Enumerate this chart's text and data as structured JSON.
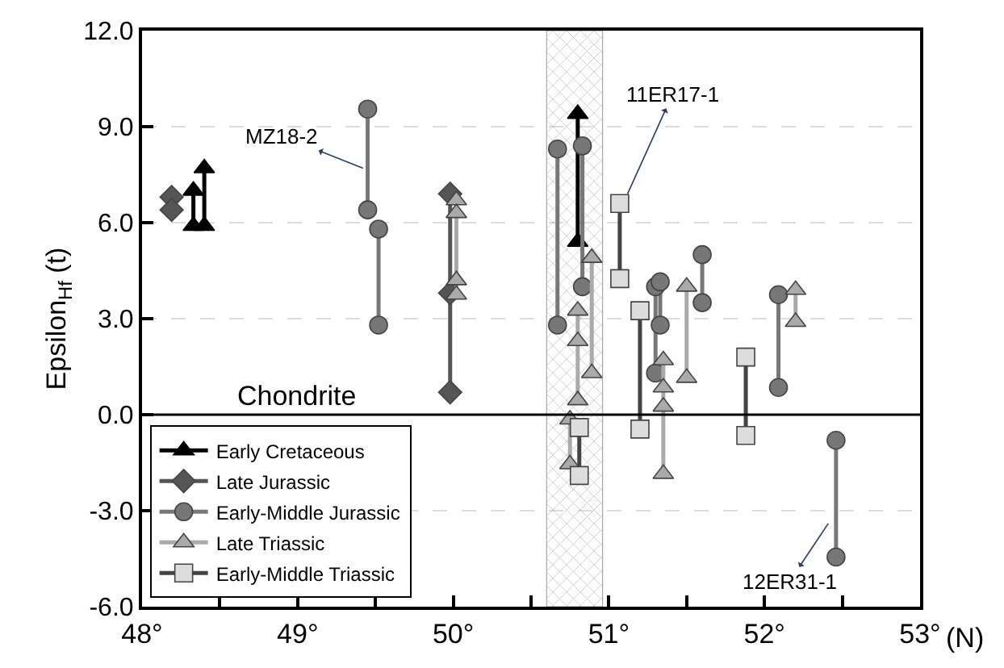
{
  "chart_data": {
    "type": "line",
    "xlabel": "(N)",
    "ylabel": "Epsilon$_{Hf}$ (t)",
    "xlim": [
      48,
      53
    ],
    "xticks": [
      {
        "value": 48,
        "label": "48°"
      },
      {
        "value": 48.5,
        "label": null
      },
      {
        "value": 49,
        "label": "49°"
      },
      {
        "value": 49.5,
        "label": null
      },
      {
        "value": 50,
        "label": "50°"
      },
      {
        "value": 50.5,
        "label": null
      },
      {
        "value": 51,
        "label": "51°"
      },
      {
        "value": 51.5,
        "label": null
      },
      {
        "value": 52,
        "label": "52°"
      },
      {
        "value": 52.5,
        "label": null
      },
      {
        "value": 53,
        "label": "53°"
      }
    ],
    "ylim": [
      -6,
      12
    ],
    "yticks": [
      {
        "value": -6,
        "label": "-6.0"
      },
      {
        "value": -3,
        "label": "-3.0"
      },
      {
        "value": 0,
        "label": "0.0"
      },
      {
        "value": 3,
        "label": "3.0"
      },
      {
        "value": 6,
        "label": "6.0"
      },
      {
        "value": 9,
        "label": "9.0"
      },
      {
        "value": 12,
        "label": "12.0"
      }
    ],
    "grid": "y",
    "legend": "bottom left",
    "series": [
      {
        "name": "Early Cretaceous",
        "color": "#000000",
        "marker": "triangle",
        "x": [
          48.33,
          48.33,
          null,
          48.4,
          48.4,
          null,
          50.8,
          50.8
        ],
        "values": [
          7.0,
          5.9,
          null,
          7.7,
          5.9,
          null,
          9.4,
          5.4
        ]
      },
      {
        "name": "Late Jurassic",
        "color": "#555555",
        "marker": "diamond",
        "x": [
          48.19,
          48.19,
          null,
          49.98,
          49.98,
          49.98
        ],
        "values": [
          6.8,
          6.4,
          null,
          6.9,
          3.8,
          0.7
        ]
      },
      {
        "name": "Early-Middle Jurassic",
        "color": "#777777",
        "marker": "circle",
        "x": [
          49.45,
          49.45,
          null,
          49.52,
          49.52,
          null,
          50.67,
          50.67,
          null,
          50.83,
          50.83,
          null,
          51.3,
          51.3,
          null,
          51.33,
          51.33,
          null,
          51.6,
          51.6,
          null,
          52.09,
          52.09,
          null,
          52.46,
          52.46
        ],
        "values": [
          9.55,
          6.4,
          null,
          5.8,
          2.8,
          null,
          8.3,
          2.8,
          null,
          8.4,
          4.0,
          null,
          4.0,
          1.3,
          null,
          4.15,
          2.8,
          null,
          5.0,
          3.5,
          null,
          3.75,
          0.85,
          null,
          -0.8,
          -4.45
        ]
      },
      {
        "name": "Late Triassic",
        "color": "#aaaaaa",
        "marker": "triangle",
        "x": [
          50.02,
          50.02,
          50.02,
          50.02,
          null,
          50.89,
          50.89,
          null,
          50.8,
          50.8,
          50.8,
          null,
          50.75,
          50.75,
          null,
          51.5,
          51.5,
          null,
          51.35,
          51.35,
          51.35,
          51.35,
          null,
          52.2,
          52.2
        ],
        "values": [
          6.7,
          6.3,
          4.2,
          3.75,
          null,
          4.9,
          1.3,
          null,
          3.25,
          2.3,
          0.45,
          null,
          -0.15,
          -1.55,
          null,
          4.0,
          1.15,
          null,
          1.7,
          0.85,
          0.25,
          -1.85,
          null,
          3.9,
          2.9
        ]
      },
      {
        "name": "Early-Middle Triassic",
        "color": "#dddddd",
        "marker": "square",
        "x": [
          51.07,
          51.07,
          null,
          51.2,
          51.2,
          null,
          50.81,
          50.81,
          null,
          51.88,
          51.88
        ],
        "values": [
          6.6,
          4.25,
          null,
          3.25,
          -0.45,
          null,
          -0.4,
          -1.9,
          null,
          1.8,
          -0.65
        ]
      }
    ],
    "ref_lines": [
      {
        "axis": "y",
        "value": 0,
        "label": "Chondrite",
        "color": "#000000",
        "line_style": "solid"
      }
    ],
    "bands": [
      {
        "axis": "x",
        "from": 50.6,
        "to": 50.96,
        "color": "#999999"
      }
    ],
    "annotations": [
      {
        "text": "MZ18-2",
        "x": 49.42,
        "y": 7.7
      },
      {
        "text": "11ER17-1",
        "x": 51.12,
        "y": 6.9
      },
      {
        "text": "12ER31-1",
        "x": 52.41,
        "y": -3.4
      }
    ]
  }
}
